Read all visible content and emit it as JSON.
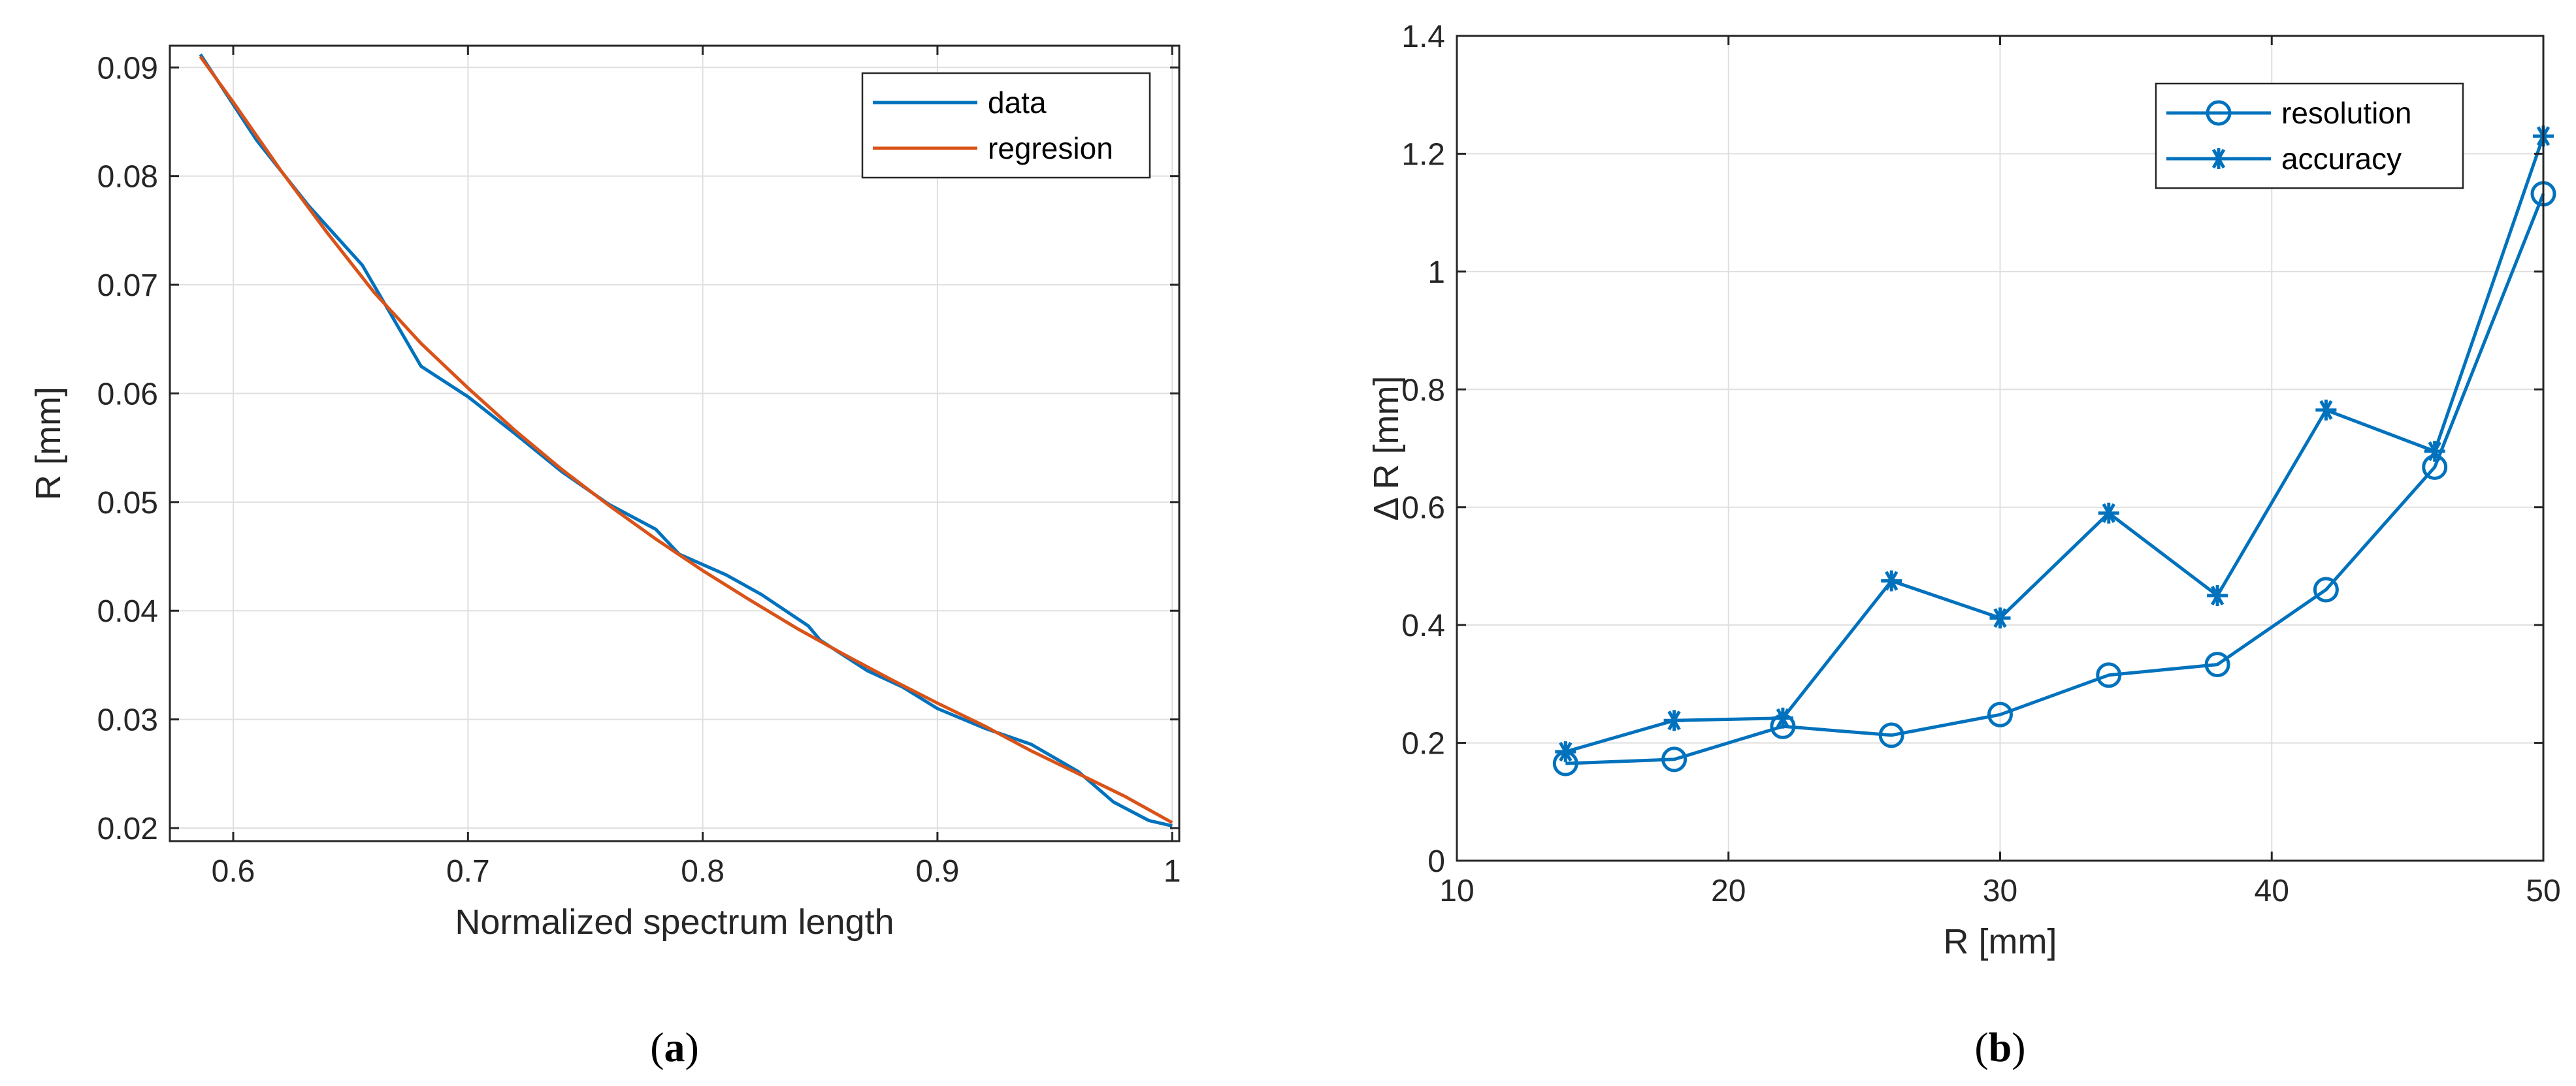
{
  "chart_data": [
    {
      "type": "line",
      "caption_letter": "a",
      "xlabel": "Normalized spectrum length",
      "ylabel": "R [mm]",
      "xlim": [
        0.573,
        1.003
      ],
      "ylim": [
        0.0188,
        0.092
      ],
      "xticks": [
        0.6,
        0.7,
        0.8,
        0.9,
        1
      ],
      "xtick_labels": [
        "0.6",
        "0.7",
        "0.8",
        "0.9",
        "1"
      ],
      "yticks": [
        0.02,
        0.03,
        0.04,
        0.05,
        0.06,
        0.07,
        0.08,
        0.09
      ],
      "ytick_labels": [
        "0.02",
        "0.03",
        "0.04",
        "0.05",
        "0.06",
        "0.07",
        "0.08",
        "0.09"
      ],
      "grid": true,
      "legend_position": "top-right",
      "colors": {
        "data": "#0072BD",
        "regresion": "#D95319"
      },
      "series": [
        {
          "name": "data",
          "x": [
            0.586,
            0.61,
            0.632,
            0.655,
            0.68,
            0.7,
            0.72,
            0.74,
            0.76,
            0.78,
            0.79,
            0.81,
            0.825,
            0.845,
            0.85,
            0.87,
            0.885,
            0.9,
            0.92,
            0.94,
            0.96,
            0.975,
            0.99,
            1.0
          ],
          "y": [
            0.0912,
            0.0833,
            0.0773,
            0.0718,
            0.0625,
            0.0597,
            0.0563,
            0.0528,
            0.0498,
            0.0475,
            0.0452,
            0.0433,
            0.0415,
            0.0386,
            0.0373,
            0.0345,
            0.033,
            0.031,
            0.0292,
            0.0277,
            0.0252,
            0.0224,
            0.0207,
            0.0202
          ]
        },
        {
          "name": "regresion",
          "x": [
            0.586,
            0.6,
            0.62,
            0.64,
            0.66,
            0.68,
            0.7,
            0.72,
            0.74,
            0.76,
            0.78,
            0.8,
            0.82,
            0.84,
            0.86,
            0.88,
            0.9,
            0.92,
            0.94,
            0.96,
            0.98,
            1.0
          ],
          "y": [
            0.091,
            0.0868,
            0.0806,
            0.0748,
            0.0693,
            0.0646,
            0.0605,
            0.0566,
            0.053,
            0.0497,
            0.0466,
            0.0437,
            0.041,
            0.0384,
            0.036,
            0.0337,
            0.0315,
            0.0294,
            0.0271,
            0.025,
            0.0229,
            0.0205
          ]
        }
      ]
    },
    {
      "type": "line",
      "caption_letter": "b",
      "xlabel": "R [mm]",
      "ylabel": "Δ R [mm]",
      "xlim": [
        10,
        50
      ],
      "ylim": [
        0,
        1.4
      ],
      "xticks": [
        10,
        20,
        30,
        40,
        50
      ],
      "xtick_labels": [
        "10",
        "20",
        "30",
        "40",
        "50"
      ],
      "yticks": [
        0,
        0.2,
        0.4,
        0.6,
        0.8,
        1.0,
        1.2,
        1.4
      ],
      "ytick_labels": [
        "0",
        "0.2",
        "0.4",
        "0.6",
        "0.8",
        "1",
        "1.2",
        "1.4"
      ],
      "grid": true,
      "legend_position": "top-right",
      "colors": {
        "resolution": "#0072BD",
        "accuracy": "#0072BD"
      },
      "series": [
        {
          "name": "resolution",
          "marker": "circle",
          "x": [
            14,
            18,
            22,
            26,
            30,
            34,
            38,
            42,
            46,
            50
          ],
          "y": [
            0.165,
            0.172,
            0.228,
            0.213,
            0.248,
            0.315,
            0.333,
            0.46,
            0.668,
            1.132
          ]
        },
        {
          "name": "accuracy",
          "marker": "asterisk",
          "x": [
            14,
            18,
            22,
            26,
            30,
            34,
            38,
            42,
            46,
            50
          ],
          "y": [
            0.185,
            0.238,
            0.242,
            0.475,
            0.412,
            0.59,
            0.45,
            0.765,
            0.695,
            1.23
          ]
        }
      ]
    }
  ]
}
